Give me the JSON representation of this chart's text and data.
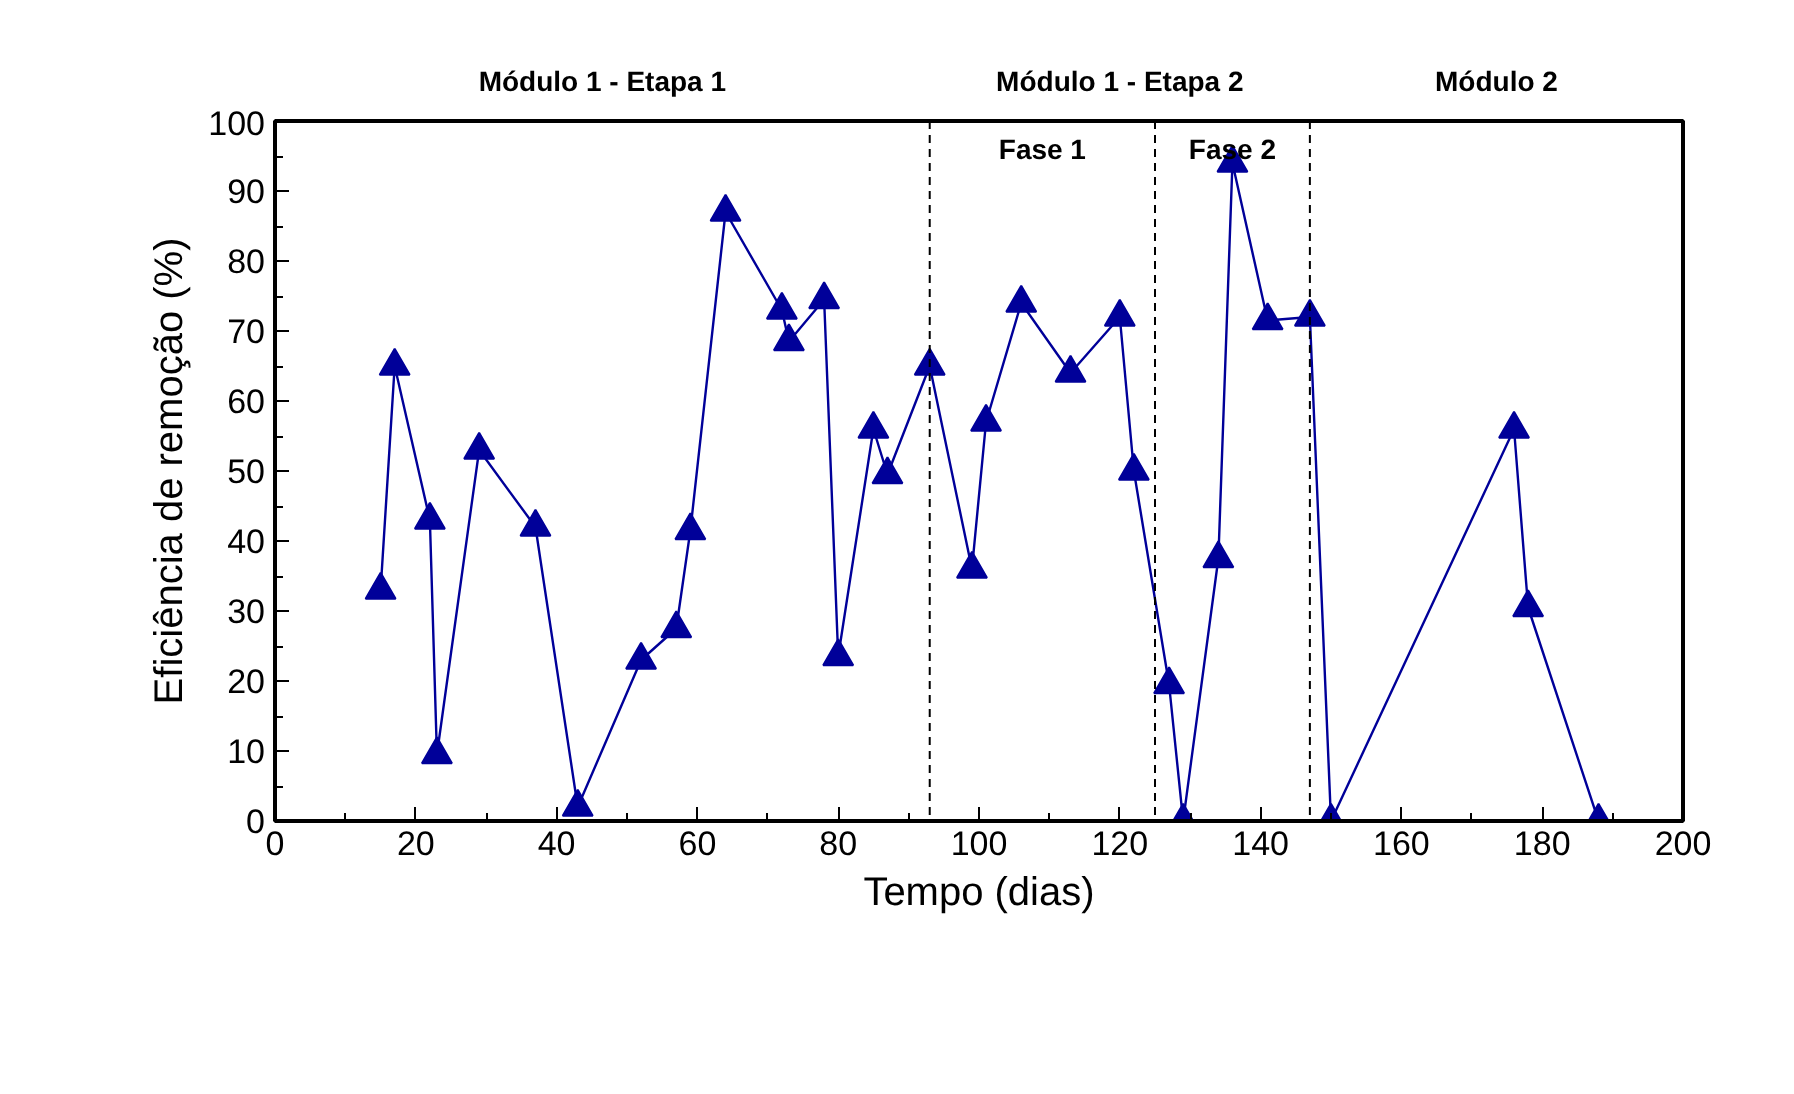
{
  "chart_data": {
    "type": "line",
    "xlabel": "Tempo (dias)",
    "ylabel": "Eficiência de remoção (%)",
    "x": [
      15,
      17,
      22,
      23,
      29,
      37,
      43,
      52,
      57,
      59,
      64,
      72,
      73,
      78,
      80,
      85,
      87,
      93,
      99,
      101,
      106,
      113,
      120,
      122,
      127,
      129,
      134,
      136,
      141,
      147,
      150,
      176,
      178,
      188
    ],
    "series": [
      {
        "color": "#000099",
        "values": [
          33,
          65,
          43,
          9.5,
          53,
          42,
          2,
          23,
          27.5,
          41.5,
          87,
          73,
          68.5,
          74.5,
          23.5,
          56,
          49.5,
          65,
          36,
          57,
          74,
          64,
          72,
          50,
          19.5,
          0,
          37.5,
          94,
          71.5,
          72,
          0,
          56,
          30.5,
          0
        ]
      }
    ],
    "xlim": [
      0,
      200
    ],
    "xticks": [
      0,
      20,
      40,
      60,
      80,
      100,
      120,
      140,
      160,
      180,
      200
    ],
    "ylim": [
      0,
      100
    ],
    "yticks": [
      0,
      10,
      20,
      30,
      40,
      50,
      60,
      70,
      80,
      90,
      100
    ],
    "marker": "triangle",
    "grid": false,
    "ref_lines": [
      {
        "axis": "x",
        "value": 93,
        "color": "#000000",
        "line_style": "dashed"
      },
      {
        "axis": "x",
        "value": 125,
        "color": "#000000",
        "line_style": "dashed"
      },
      {
        "axis": "x",
        "value": 147,
        "color": "#000000",
        "line_style": "dashed"
      }
    ],
    "annotations": [
      "Módulo 1 - Etapa 1",
      "Módulo 1 - Etapa 2",
      "Fase 1",
      "Fase 2",
      "Módulo 2"
    ]
  }
}
